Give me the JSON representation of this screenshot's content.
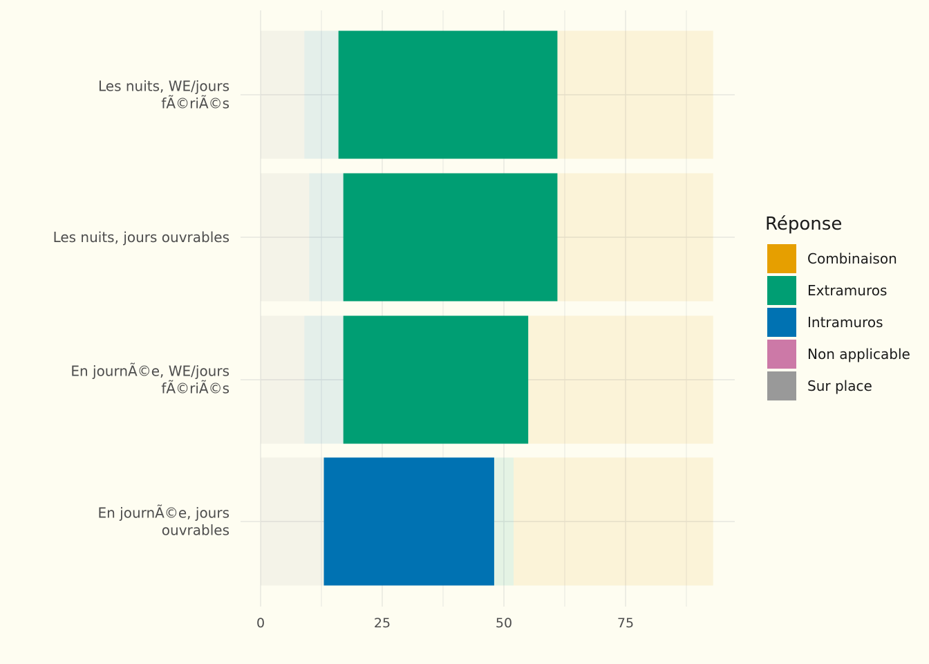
{
  "chart_data": {
    "type": "bar",
    "orientation": "horizontal",
    "stacked": true,
    "categories": [
      "En journÃ©e, jours ouvrables",
      "En journÃ©e, WE/jours fÃ©riÃ©s",
      "Les nuits, jours ouvrables",
      "Les nuits, WE/jours fÃ©riÃ©s"
    ],
    "series": [
      {
        "name": "Sur place",
        "color": "#999999",
        "values": [
          13,
          9,
          10,
          9
        ]
      },
      {
        "name": "Non applicable",
        "color": "#cc79a7",
        "values": [
          0,
          0,
          0,
          0
        ]
      },
      {
        "name": "Intramuros",
        "color": "#0072b2",
        "values": [
          35,
          8,
          7,
          7
        ]
      },
      {
        "name": "Extramuros",
        "color": "#009e73",
        "values": [
          4,
          38,
          44,
          45
        ]
      },
      {
        "name": "Combinaison",
        "color": "#e69f00",
        "values": [
          41,
          38,
          32,
          32
        ]
      }
    ],
    "highlighted_series": {
      "En journÃ©e, jours ouvrables": "Intramuros",
      "En journÃ©e, WE/jours fÃ©riÃ©s": "Extramuros",
      "Les nuits, jours ouvrables": "Extramuros",
      "Les nuits, WE/jours fÃ©riÃ©s": "Extramuros"
    },
    "x_ticks": [
      0,
      25,
      50,
      75
    ],
    "xlim": [
      0,
      93
    ],
    "grid": true,
    "legend": {
      "title": "Réponse",
      "position": "right",
      "entries": [
        "Combinaison",
        "Extramuros",
        "Intramuros",
        "Non applicable",
        "Sur place"
      ]
    },
    "title": "",
    "xlabel": "",
    "ylabel": ""
  }
}
